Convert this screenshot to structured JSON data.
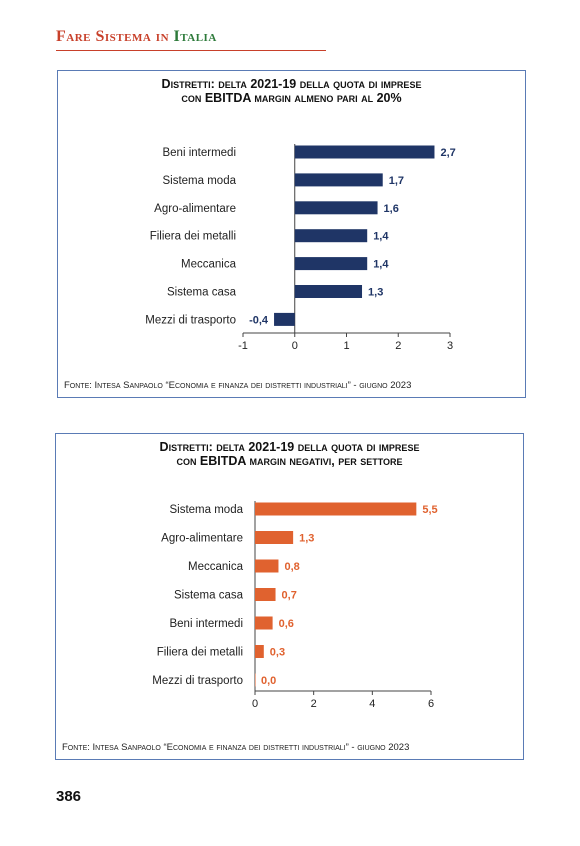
{
  "header": {
    "part1": "Fare Sistema in ",
    "part2": "Italia"
  },
  "charts": [
    {
      "title_line1": "Distretti: delta 2021-19 della quota di imprese",
      "title_line2": "con EBITDA margin almeno pari al 20%",
      "source": "Fonte: Intesa Sanpaolo “Economia e finanza dei distretti industriali” - giugno 2023"
    },
    {
      "title_line1": "Distretti: delta 2021-19 della quota di imprese",
      "title_line2": "con EBITDA margin negativi, per settore",
      "source": "Fonte: Intesa Sanpaolo “Economia e finanza dei distretti industriali” - giugno 2023"
    }
  ],
  "chart_data": [
    {
      "type": "bar",
      "orientation": "horizontal",
      "title": "Distretti: delta 2021-19 della quota di imprese con EBITDA margin almeno pari al 20%",
      "categories": [
        "Beni intermedi",
        "Sistema moda",
        "Agro-alimentare",
        "Filiera dei metalli",
        "Meccanica",
        "Sistema casa",
        "Mezzi di trasporto"
      ],
      "values": [
        2.7,
        1.7,
        1.6,
        1.4,
        1.4,
        1.3,
        -0.4
      ],
      "value_labels": [
        "2,7",
        "1,7",
        "1,6",
        "1,4",
        "1,4",
        "1,3",
        "-0,4"
      ],
      "xlim": [
        -1,
        3
      ],
      "xticks": [
        -1,
        0,
        1,
        2,
        3
      ],
      "xtick_labels": [
        "-1",
        "0",
        "1",
        "2",
        "3"
      ],
      "color": "#1f3566",
      "grid": false
    },
    {
      "type": "bar",
      "orientation": "horizontal",
      "title": "Distretti: delta 2021-19 della quota di imprese con EBITDA margin negativi, per settore",
      "categories": [
        "Sistema moda",
        "Agro-alimentare",
        "Meccanica",
        "Sistema casa",
        "Beni intermedi",
        "Filiera dei metalli",
        "Mezzi di trasporto"
      ],
      "values": [
        5.5,
        1.3,
        0.8,
        0.7,
        0.6,
        0.3,
        0.0
      ],
      "value_labels": [
        "5,5",
        "1,3",
        "0,8",
        "0,7",
        "0,6",
        "0,3",
        "0,0"
      ],
      "xlim": [
        0,
        6
      ],
      "xticks": [
        0,
        2,
        4,
        6
      ],
      "xtick_labels": [
        "0",
        "2",
        "4",
        "6"
      ],
      "color": "#e0622f",
      "grid": false
    }
  ],
  "page_number": "386"
}
